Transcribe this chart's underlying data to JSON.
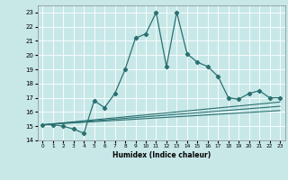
{
  "title": "",
  "xlabel": "Humidex (Indice chaleur)",
  "bg_color": "#c8e8e8",
  "line_color": "#2a7070",
  "xlim": [
    -0.5,
    23.5
  ],
  "ylim": [
    14,
    23.5
  ],
  "yticks": [
    14,
    15,
    16,
    17,
    18,
    19,
    20,
    21,
    22,
    23
  ],
  "xticks": [
    0,
    1,
    2,
    3,
    4,
    5,
    6,
    7,
    8,
    9,
    10,
    11,
    12,
    13,
    14,
    15,
    16,
    17,
    18,
    19,
    20,
    21,
    22,
    23
  ],
  "main_x": [
    0,
    1,
    2,
    3,
    4,
    5,
    6,
    7,
    8,
    9,
    10,
    11,
    12,
    13,
    14,
    15,
    16,
    17,
    18,
    19,
    20,
    21,
    22,
    23
  ],
  "main_y": [
    15.1,
    15.1,
    15.0,
    14.8,
    14.5,
    16.8,
    16.3,
    17.3,
    19.0,
    21.2,
    21.5,
    23.0,
    19.2,
    23.0,
    20.1,
    19.5,
    19.2,
    18.5,
    17.0,
    16.9,
    17.3,
    17.5,
    17.0,
    17.0
  ],
  "trend1_x": [
    0,
    23
  ],
  "trend1_y": [
    15.1,
    16.1
  ],
  "trend2_x": [
    0,
    23
  ],
  "trend2_y": [
    15.1,
    16.4
  ],
  "trend3_x": [
    0,
    23
  ],
  "trend3_y": [
    15.1,
    16.7
  ]
}
